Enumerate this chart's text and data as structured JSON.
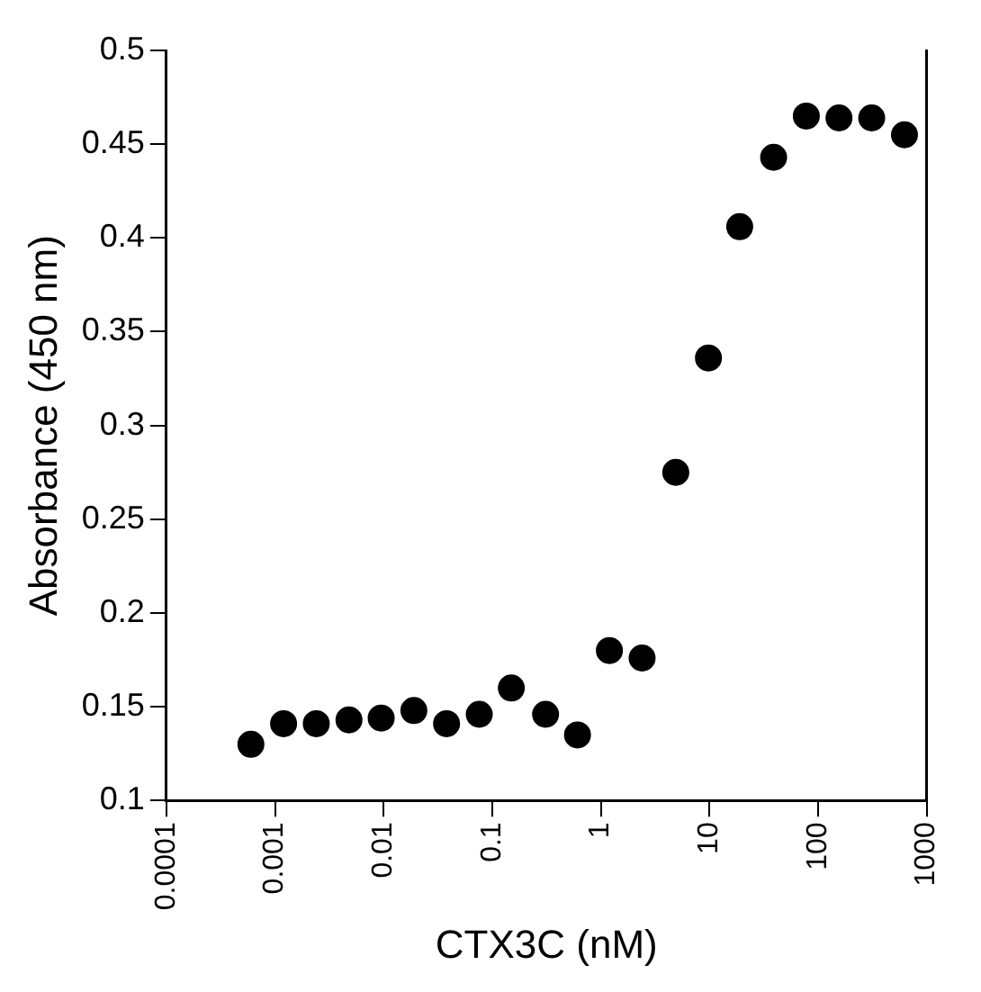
{
  "chart_data": {
    "type": "scatter",
    "xlabel": "CTX3C (nM)",
    "ylabel": "Absorbance (450 nm)",
    "x": [
      0.0006,
      0.0012,
      0.0024,
      0.0048,
      0.0095,
      0.019,
      0.038,
      0.076,
      0.15,
      0.31,
      0.61,
      1.2,
      2.4,
      4.9,
      9.8,
      19,
      39,
      78,
      156,
      312,
      625
    ],
    "series": [
      {
        "color": "#000000",
        "values": [
          0.13,
          0.141,
          0.141,
          0.143,
          0.144,
          0.148,
          0.141,
          0.146,
          0.16,
          0.146,
          0.135,
          0.18,
          0.176,
          0.275,
          0.336,
          0.406,
          0.443,
          0.465,
          0.464,
          0.464,
          0.455
        ]
      }
    ],
    "log": "x",
    "marker": "circle",
    "grid": false,
    "legend": false,
    "xlim": [
      0.0001,
      1000
    ],
    "xticks": [
      0.0001,
      0.001,
      0.01,
      0.1,
      1,
      10,
      100,
      1000
    ],
    "ylim": [
      0.1,
      0.5
    ],
    "yticks": [
      0.1,
      0.15,
      0.2,
      0.25,
      0.3,
      0.35,
      0.4,
      0.45,
      0.5
    ]
  }
}
